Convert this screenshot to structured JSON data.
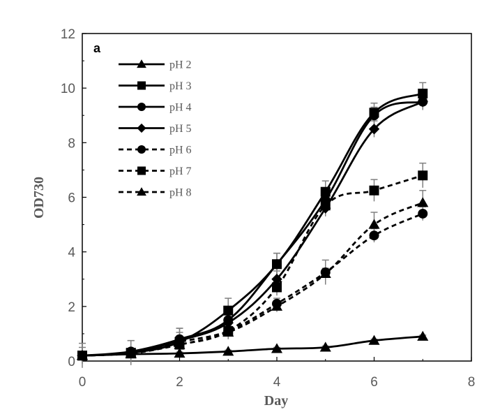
{
  "chart_data": {
    "type": "line",
    "panel_label": "a",
    "xlabel": "Day",
    "ylabel": "OD730",
    "xlim": [
      0,
      8
    ],
    "ylim": [
      0,
      12
    ],
    "xticks": [
      0,
      2,
      4,
      6,
      8
    ],
    "yticks": [
      0,
      2,
      4,
      6,
      8,
      10,
      12
    ],
    "x": [
      0,
      1,
      2,
      3,
      4,
      5,
      6,
      7
    ],
    "grid": false,
    "legend_position": "top-left",
    "line_color": "#000000",
    "series": [
      {
        "name": "pH 2",
        "marker": "triangle",
        "dash": "solid",
        "values": [
          0.2,
          0.25,
          0.28,
          0.35,
          0.45,
          0.5,
          0.75,
          0.9
        ],
        "errors": [
          0.05,
          0.05,
          0.05,
          0.05,
          0.05,
          0.05,
          0.05,
          0.05
        ]
      },
      {
        "name": "pH 3",
        "marker": "square",
        "dash": "solid",
        "values": [
          0.2,
          0.3,
          0.7,
          1.85,
          3.55,
          6.2,
          9.1,
          9.8
        ],
        "errors": [
          0.45,
          0.45,
          0.5,
          0.45,
          0.4,
          0.4,
          0.35,
          0.4
        ]
      },
      {
        "name": "pH 4",
        "marker": "circle",
        "dash": "solid",
        "values": [
          0.2,
          0.35,
          0.8,
          1.5,
          3.55,
          5.9,
          9.0,
          9.5
        ],
        "errors": [
          0.3,
          0.4,
          0.4,
          0.3,
          0.4,
          0.3,
          0.3,
          0.3
        ]
      },
      {
        "name": "pH 5",
        "marker": "diamond",
        "dash": "solid",
        "values": [
          0.2,
          0.3,
          0.75,
          1.4,
          3.0,
          5.6,
          8.5,
          9.5
        ],
        "errors": [
          0.1,
          0.1,
          0.3,
          0.2,
          0.3,
          0.3,
          0.3,
          0.3
        ]
      },
      {
        "name": "pH 6",
        "marker": "circle",
        "dash": "dashed",
        "values": [
          0.2,
          0.3,
          0.7,
          1.1,
          2.1,
          3.25,
          4.6,
          5.4
        ],
        "errors": [
          0.1,
          0.1,
          0.2,
          0.2,
          0.2,
          0.45,
          0.25,
          0.25
        ]
      },
      {
        "name": "pH 7",
        "marker": "square",
        "dash": "dashed",
        "values": [
          0.2,
          0.3,
          0.6,
          1.1,
          2.7,
          5.7,
          6.25,
          6.8
        ],
        "errors": [
          0.1,
          0.1,
          0.3,
          0.3,
          0.3,
          0.2,
          0.4,
          0.45
        ]
      },
      {
        "name": "pH 8",
        "marker": "triangle",
        "dash": "dashed",
        "values": [
          0.2,
          0.28,
          0.6,
          1.05,
          2.0,
          3.2,
          5.0,
          5.8
        ],
        "errors": [
          0.1,
          0.1,
          0.2,
          0.2,
          0.2,
          0.2,
          0.45,
          0.45
        ]
      }
    ]
  }
}
